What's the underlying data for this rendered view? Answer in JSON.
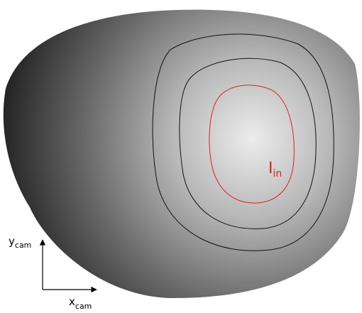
{
  "labels": {
    "intensity": {
      "main": "I",
      "sub": "in"
    },
    "y_axis": {
      "main": "y",
      "sub": "cam"
    },
    "x_axis": {
      "main": "x",
      "sub": "cam"
    }
  }
}
